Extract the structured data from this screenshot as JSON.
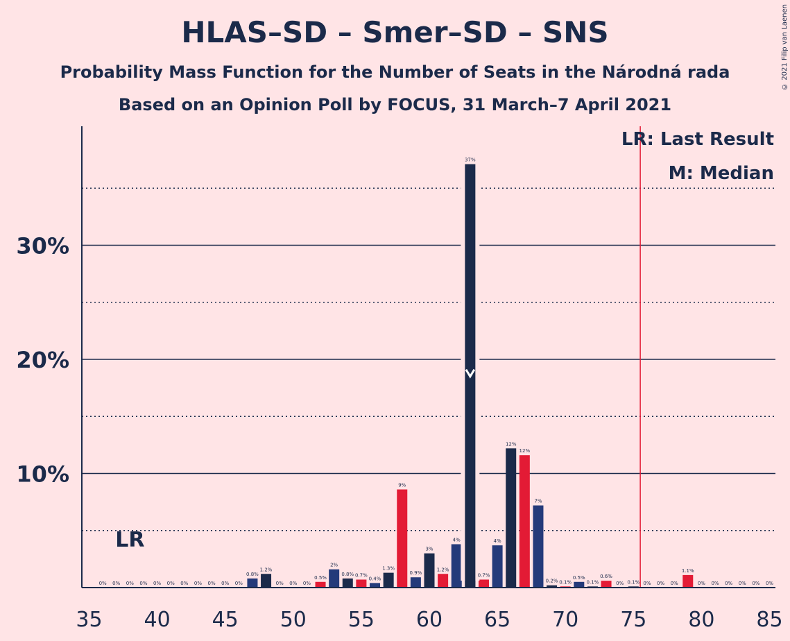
{
  "title": "HLAS–SD – Smer–SD – SNS",
  "subtitle1": "Probability Mass Function for the Number of Seats in the Národná rada",
  "subtitle2": "Based on an Opinion Poll by FOCUS, 31 March–7 April 2021",
  "copyright": "© 2021 Filip van Laenen",
  "legend": {
    "last_result": "LR: Last Result",
    "median": "M: Median",
    "lr_marker": "LR"
  },
  "colors": {
    "background": "#FFE4E6",
    "navy": "#1B2A4A",
    "red": "#E31B35",
    "blue": "#243A7A",
    "majority_line": "#E31B35"
  },
  "chart_data": {
    "type": "bar",
    "xlim": [
      35,
      85
    ],
    "ylim": [
      0,
      40
    ],
    "x_ticks": [
      "35",
      "40",
      "45",
      "50",
      "55",
      "60",
      "65",
      "70",
      "75",
      "80",
      "85"
    ],
    "y_ticks": [
      {
        "value": 10,
        "label": "10%"
      },
      {
        "value": 20,
        "label": "20%"
      },
      {
        "value": 30,
        "label": "30%"
      }
    ],
    "minor_grid": [
      5,
      15,
      25,
      35
    ],
    "last_result_seat": 38,
    "majority_seat": 76,
    "median_seat": 63,
    "median_marker_value": 18.5,
    "bars": [
      {
        "seats": 36,
        "value": 0,
        "label": "0%",
        "color": "navy"
      },
      {
        "seats": 37,
        "value": 0,
        "label": "0%",
        "color": "red"
      },
      {
        "seats": 38,
        "value": 0,
        "label": "0%",
        "color": "blue"
      },
      {
        "seats": 39,
        "value": 0,
        "label": "0%",
        "color": "navy"
      },
      {
        "seats": 40,
        "value": 0,
        "label": "0%",
        "color": "red"
      },
      {
        "seats": 41,
        "value": 0,
        "label": "0%",
        "color": "blue"
      },
      {
        "seats": 42,
        "value": 0,
        "label": "0%",
        "color": "navy"
      },
      {
        "seats": 43,
        "value": 0,
        "label": "0%",
        "color": "red"
      },
      {
        "seats": 44,
        "value": 0,
        "label": "0%",
        "color": "blue"
      },
      {
        "seats": 45,
        "value": 0,
        "label": "0%",
        "color": "navy"
      },
      {
        "seats": 46,
        "value": 0,
        "label": "0%",
        "color": "red"
      },
      {
        "seats": 47,
        "value": 0.8,
        "label": "0.8%",
        "color": "blue"
      },
      {
        "seats": 48,
        "value": 1.2,
        "label": "1.2%",
        "color": "navy"
      },
      {
        "seats": 49,
        "value": 0,
        "label": "0%",
        "color": "red"
      },
      {
        "seats": 50,
        "value": 0,
        "label": "0%",
        "color": "blue"
      },
      {
        "seats": 51,
        "value": 0,
        "label": "0%",
        "color": "navy"
      },
      {
        "seats": 52,
        "value": 0.5,
        "label": "0.5%",
        "color": "red"
      },
      {
        "seats": 53,
        "value": 1.6,
        "label": "2%",
        "color": "blue"
      },
      {
        "seats": 54,
        "value": 0.8,
        "label": "0.8%",
        "color": "navy"
      },
      {
        "seats": 55,
        "value": 0.7,
        "label": "0.7%",
        "color": "red"
      },
      {
        "seats": 56,
        "value": 0.4,
        "label": "0.4%",
        "color": "blue"
      },
      {
        "seats": 57,
        "value": 1.3,
        "label": "1.3%",
        "color": "navy"
      },
      {
        "seats": 58,
        "value": 8.6,
        "label": "9%",
        "color": "red"
      },
      {
        "seats": 59,
        "value": 0.9,
        "label": "0.9%",
        "color": "blue"
      },
      {
        "seats": 60,
        "value": 3.0,
        "label": "3%",
        "color": "navy"
      },
      {
        "seats": 61,
        "value": 1.2,
        "label": "1.2%",
        "color": "red"
      },
      {
        "seats": 62,
        "value": 3.8,
        "label": "4%",
        "color": "blue"
      },
      {
        "seats": 63,
        "value": 37.1,
        "label": "37%",
        "color": "navy"
      },
      {
        "seats": 64,
        "value": 0.7,
        "label": "0.7%",
        "color": "red"
      },
      {
        "seats": 65,
        "value": 3.7,
        "label": "4%",
        "color": "blue"
      },
      {
        "seats": 66,
        "value": 12.2,
        "label": "12%",
        "color": "navy"
      },
      {
        "seats": 67,
        "value": 11.6,
        "label": "12%",
        "color": "red"
      },
      {
        "seats": 68,
        "value": 7.2,
        "label": "7%",
        "color": "blue"
      },
      {
        "seats": 69,
        "value": 0.2,
        "label": "0.2%",
        "color": "navy"
      },
      {
        "seats": 70,
        "value": 0.1,
        "label": "0.1%",
        "color": "red"
      },
      {
        "seats": 71,
        "value": 0.5,
        "label": "0.5%",
        "color": "blue"
      },
      {
        "seats": 72,
        "value": 0.1,
        "label": "0.1%",
        "color": "navy"
      },
      {
        "seats": 73,
        "value": 0.6,
        "label": "0.6%",
        "color": "red"
      },
      {
        "seats": 74,
        "value": 0,
        "label": "0%",
        "color": "blue"
      },
      {
        "seats": 75,
        "value": 0.1,
        "label": "0.1%",
        "color": "navy"
      },
      {
        "seats": 76,
        "value": 0,
        "label": "0%",
        "color": "red"
      },
      {
        "seats": 77,
        "value": 0,
        "label": "0%",
        "color": "blue"
      },
      {
        "seats": 78,
        "value": 0,
        "label": "0%",
        "color": "navy"
      },
      {
        "seats": 79,
        "value": 1.1,
        "label": "1.1%",
        "color": "red"
      },
      {
        "seats": 80,
        "value": 0,
        "label": "0%",
        "color": "blue"
      },
      {
        "seats": 81,
        "value": 0,
        "label": "0%",
        "color": "navy"
      },
      {
        "seats": 82,
        "value": 0,
        "label": "0%",
        "color": "red"
      },
      {
        "seats": 83,
        "value": 0,
        "label": "0%",
        "color": "blue"
      },
      {
        "seats": 84,
        "value": 0,
        "label": "0%",
        "color": "navy"
      },
      {
        "seats": 85,
        "value": 0,
        "label": "0%",
        "color": "red"
      }
    ]
  }
}
